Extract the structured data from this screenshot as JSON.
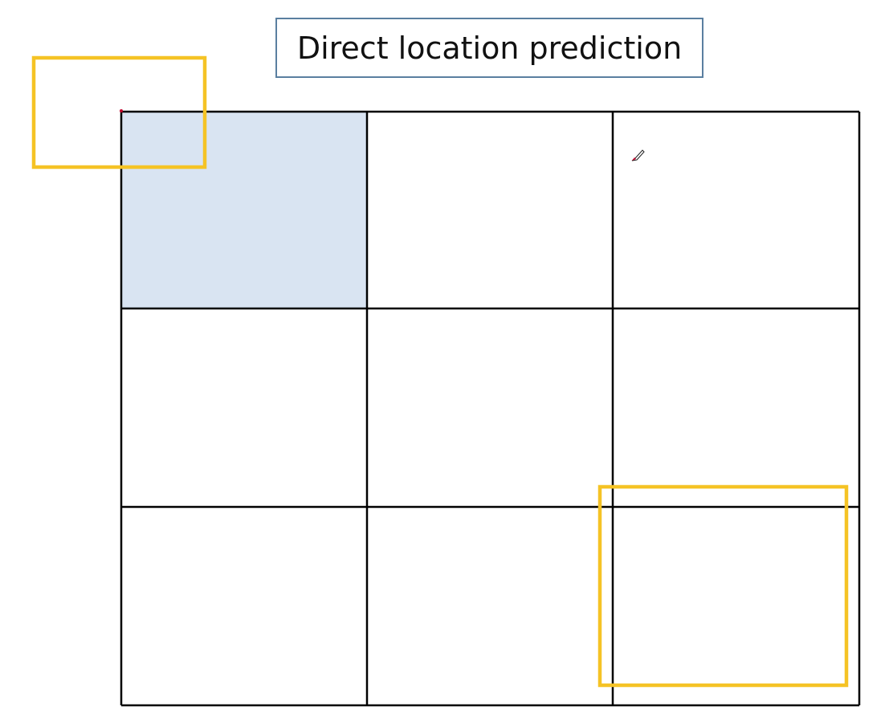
{
  "title": "Direct location prediction",
  "colors": {
    "grid_line": "#000000",
    "highlight_cell": "#d9e4f2",
    "box_outline": "#f5c325",
    "title_border": "#5a7fa0",
    "pointer": "#c0002a"
  },
  "grid": {
    "rows": 3,
    "columns": 3,
    "highlighted_cells": [
      [
        0,
        0
      ]
    ]
  },
  "icons": {
    "pointer": "pen-pointer-icon"
  }
}
